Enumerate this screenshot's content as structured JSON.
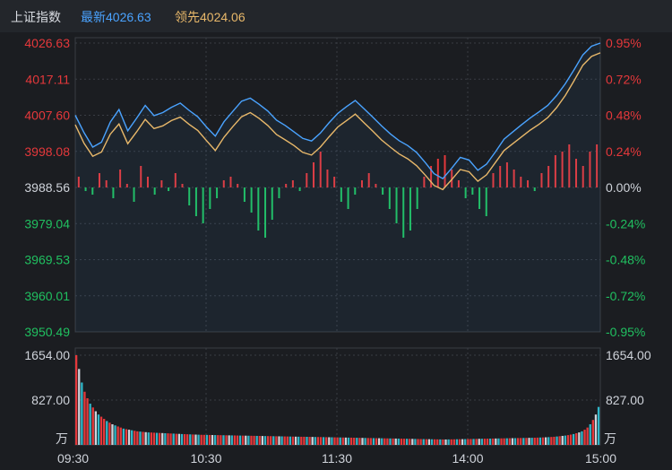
{
  "header": {
    "title": "上证指数",
    "latest_label": "最新4026.63",
    "leading_label": "领先4024.06"
  },
  "colors": {
    "background": "#1b1d21",
    "header_bg": "#23262b",
    "grid": "#3a3d44",
    "up": "#e5383b",
    "down": "#20c060",
    "neutral": "#cfd3da",
    "latest_line": "#4aa3ff",
    "leading_line": "#e8b86a",
    "title": "#d9dce2"
  },
  "chart_data": [
    {
      "type": "line",
      "title": "上证指数",
      "series": [
        {
          "name": "最新",
          "color": "#4aa3ff",
          "values": [
            4007.6,
            4003,
            3999.2,
            4000.5,
            4005.8,
            4009.1,
            4003.5,
            4006.8,
            4010.2,
            4007.5,
            4008.3,
            4009.7,
            4010.8,
            4008.9,
            4007.2,
            4004.5,
            4002.1,
            4005.9,
            4008.6,
            4011.3,
            4012.1,
            4010.5,
            4008.7,
            4006.3,
            4004.9,
            4003.2,
            4001.5,
            4000.8,
            4002.9,
            4005.6,
            4008.1,
            4009.9,
            4011.5,
            4009.3,
            4007.1,
            4004.8,
            4002.7,
            4000.9,
            3999.6,
            3997.8,
            3995.1,
            3992.2,
            3990.9,
            3993.6,
            3996.5,
            3995.8,
            3993.1,
            3994.7,
            3997.9,
            4001.3,
            4003.2,
            4005.1,
            4006.9,
            4008.5,
            4010.2,
            4012.8,
            4015.9,
            4019.6,
            4023.5,
            4025.8,
            4026.63
          ]
        },
        {
          "name": "领先",
          "color": "#e8b86a",
          "values": [
            4005.1,
            4000.2,
            3996.8,
            3997.9,
            4002.6,
            4005.3,
            4000.1,
            4003.2,
            4006.5,
            4004.1,
            4004.8,
            4006.2,
            4007.1,
            4005.2,
            4003.6,
            4000.9,
            3998.3,
            4001.8,
            4004.6,
            4007.2,
            4008.3,
            4006.8,
            4004.9,
            4002.5,
            4001.1,
            3999.6,
            3997.8,
            3997.1,
            3999.2,
            4001.9,
            4004.5,
            4006.2,
            4007.9,
            4005.6,
            4003.4,
            4001.1,
            3999.2,
            3997.4,
            3996.1,
            3994.3,
            3991.8,
            3989.1,
            3988.0,
            3990.6,
            3993.3,
            3992.7,
            3990.2,
            3991.9,
            3995.1,
            3998.3,
            4000.1,
            4001.9,
            4003.7,
            4005.2,
            4007.0,
            4009.6,
            4012.8,
            4016.7,
            4020.8,
            4023.1,
            4024.06
          ]
        }
      ],
      "y_ticks_left": [
        "4026.63",
        "4017.11",
        "4007.60",
        "3998.08",
        "3988.56",
        "3979.04",
        "3969.53",
        "3960.01",
        "3950.49"
      ],
      "y_ticks_right": [
        "0.95%",
        "0.72%",
        "0.48%",
        "0.24%",
        "0.00%",
        "-0.24%",
        "-0.48%",
        "-0.72%",
        "-0.95%"
      ],
      "ylim": [
        3950.49,
        4026.63
      ],
      "base": 3988.56,
      "breadth_bars": [
        3,
        -1,
        -2,
        4,
        2,
        -3,
        5,
        1,
        -4,
        6,
        3,
        -2,
        2,
        -1,
        4,
        1,
        -5,
        -8,
        -10,
        -6,
        -3,
        2,
        3,
        1,
        -4,
        -7,
        -12,
        -14,
        -9,
        -3,
        1,
        2,
        -1,
        4,
        7,
        10,
        5,
        3,
        -4,
        -6,
        -2,
        2,
        4,
        1,
        -2,
        -6,
        -10,
        -14,
        -12,
        -6,
        3,
        6,
        8,
        9,
        5,
        2,
        -3,
        -2,
        -6,
        -8,
        4,
        6,
        7,
        5,
        3,
        2,
        -1,
        4,
        6,
        9,
        10,
        12,
        8,
        6,
        10,
        12
      ]
    },
    {
      "type": "bar",
      "title": "",
      "y_ticks_left": [
        "1654.00",
        "827.00"
      ],
      "y_ticks_right": [
        "1654.00",
        "827.00"
      ],
      "unit": "万",
      "ylim": [
        0,
        1654
      ],
      "volume_bars": [
        1654,
        1400,
        1150,
        980,
        860,
        760,
        690,
        620,
        560,
        520,
        480,
        440,
        410,
        380,
        360,
        340,
        320,
        300,
        290,
        280,
        270,
        260,
        250,
        245,
        240,
        235,
        230,
        228,
        225,
        222,
        220,
        218,
        215,
        213,
        210,
        208,
        205,
        203,
        200,
        198,
        196,
        194,
        192,
        190,
        188,
        186,
        185,
        184,
        183,
        182,
        181,
        180,
        179,
        178,
        177,
        176,
        175,
        174,
        173,
        172,
        171,
        170,
        169,
        168,
        167,
        166,
        165,
        164,
        163,
        162,
        161,
        160,
        159,
        158,
        157,
        156,
        155,
        154,
        153,
        152,
        151,
        150,
        150,
        149,
        148,
        147,
        146,
        145,
        144,
        143,
        142,
        141,
        140,
        139,
        138,
        137,
        136,
        135,
        134,
        133,
        132,
        131,
        130,
        129,
        128,
        127,
        126,
        125,
        124,
        123,
        122,
        121,
        120,
        119,
        118,
        117,
        116,
        115,
        114,
        113,
        112,
        111,
        110,
        109,
        108,
        107,
        106,
        105,
        104,
        103,
        102,
        101,
        100,
        100,
        101,
        102,
        103,
        104,
        105,
        106,
        107,
        108,
        109,
        110,
        111,
        112,
        113,
        114,
        115,
        116,
        117,
        118,
        119,
        120,
        121,
        122,
        123,
        124,
        125,
        126,
        127,
        128,
        129,
        130,
        131,
        132,
        134,
        136,
        138,
        140,
        143,
        146,
        150,
        155,
        160,
        166,
        172,
        180,
        190,
        200,
        215,
        230,
        250,
        280,
        320,
        380,
        460,
        560,
        700
      ],
      "x_ticks": [
        "09:30",
        "10:30",
        "11:30",
        "14:00",
        "15:00"
      ]
    }
  ]
}
